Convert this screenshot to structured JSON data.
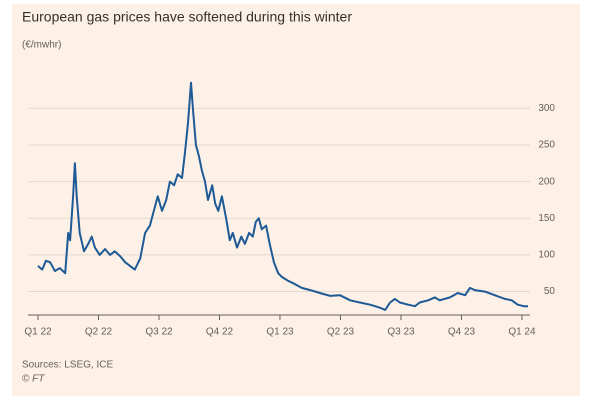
{
  "chart_data": {
    "type": "line",
    "title": "European gas prices have softened during this winter",
    "subtitle": "(€/mwhr)",
    "source": "Sources: LSEG, ICE",
    "credit": "© FT",
    "xlim": [
      0,
      8.1
    ],
    "xticks": [
      {
        "value": 0,
        "label": "Q1 22"
      },
      {
        "value": 1,
        "label": "Q2 22"
      },
      {
        "value": 2,
        "label": "Q3 22"
      },
      {
        "value": 3,
        "label": "Q4 22"
      },
      {
        "value": 4,
        "label": "Q1 23"
      },
      {
        "value": 5,
        "label": "Q2 23"
      },
      {
        "value": 6,
        "label": "Q3 23"
      },
      {
        "value": 7,
        "label": "Q4 23"
      },
      {
        "value": 8,
        "label": "Q1 24"
      }
    ],
    "ylim": [
      18,
      366
    ],
    "yticks": [
      50,
      100,
      150,
      200,
      250,
      300
    ],
    "grid": true,
    "x": [
      0,
      0.07,
      0.13,
      0.2,
      0.28,
      0.36,
      0.45,
      0.5,
      0.53,
      0.58,
      0.61,
      0.64,
      0.69,
      0.76,
      0.83,
      0.89,
      0.94,
      1.02,
      1.11,
      1.19,
      1.27,
      1.36,
      1.44,
      1.52,
      1.6,
      1.69,
      1.77,
      1.85,
      1.93,
      1.98,
      2.05,
      2.12,
      2.18,
      2.25,
      2.31,
      2.38,
      2.43,
      2.48,
      2.53,
      2.56,
      2.61,
      2.66,
      2.71,
      2.76,
      2.81,
      2.88,
      2.93,
      2.98,
      3.04,
      3.11,
      3.17,
      3.22,
      3.29,
      3.36,
      3.42,
      3.49,
      3.55,
      3.6,
      3.65,
      3.7,
      3.77,
      3.83,
      3.9,
      3.97,
      4.03,
      4.13,
      4.25,
      4.36,
      4.5,
      4.66,
      4.83,
      4.99,
      5.16,
      5.32,
      5.49,
      5.65,
      5.74,
      5.82,
      5.9,
      5.98,
      6.12,
      6.23,
      6.31,
      6.45,
      6.56,
      6.64,
      6.81,
      6.94,
      7.06,
      7.14,
      7.22,
      7.39,
      7.55,
      7.72,
      7.83,
      7.93,
      8.03,
      8.1
    ],
    "series": [
      {
        "name": "Gas price",
        "color": "#1d5a96",
        "values": [
          85,
          80,
          92,
          90,
          78,
          82,
          75,
          130,
          120,
          180,
          225,
          180,
          130,
          105,
          115,
          125,
          110,
          100,
          108,
          100,
          105,
          98,
          90,
          85,
          80,
          95,
          130,
          140,
          165,
          180,
          160,
          175,
          200,
          195,
          210,
          205,
          240,
          280,
          335,
          300,
          250,
          235,
          215,
          200,
          175,
          195,
          170,
          160,
          180,
          150,
          120,
          130,
          110,
          125,
          115,
          130,
          125,
          145,
          150,
          135,
          140,
          115,
          90,
          75,
          70,
          65,
          60,
          55,
          52,
          48,
          44,
          45,
          38,
          35,
          32,
          28,
          25,
          35,
          40,
          35,
          32,
          30,
          35,
          38,
          42,
          38,
          42,
          48,
          45,
          55,
          52,
          50,
          45,
          40,
          38,
          32,
          30,
          30
        ]
      }
    ]
  }
}
